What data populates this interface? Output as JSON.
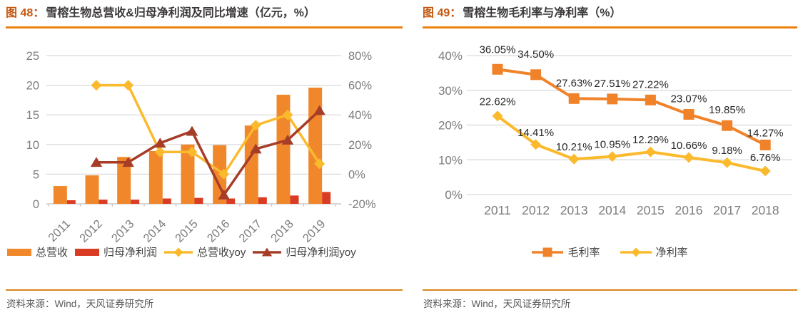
{
  "panels": [
    {
      "fig_label": "图 48：",
      "title": "雪榕生物总营收&归母净利润及同比增速（亿元，%）",
      "source": "资料来源：Wind，天风证券研究所"
    },
    {
      "fig_label": "图 49：",
      "title": "雪榕生物毛利率与净利率（%）",
      "source": "资料来源：Wind，天风证券研究所"
    }
  ],
  "colors": {
    "fig_label": "#C4570E",
    "title_text": "#3B3838",
    "rule_orange": "#EC820D",
    "axis_label_gray": "#7D7D7D",
    "grid_gray": "#D9D9D9",
    "baseline_gray": "#BFBFBF",
    "data_label": "#262626",
    "source_gray": "#595959",
    "bar_orange": "#F0882B",
    "bar_red": "#DA3B23",
    "line_yellow": "#FBBA2D",
    "line_dark_red": "#A63D28",
    "line_orange": "#F0832A"
  },
  "chart_data": [
    {
      "type": "bar",
      "subtype": "combo-bar-line-dual-axis",
      "title": "雪榕生物总营收&归母净利润及同比增速（亿元，%）",
      "categories": [
        "2011",
        "2012",
        "2013",
        "2014",
        "2015",
        "2016",
        "2017",
        "2018",
        "2019"
      ],
      "series": [
        {
          "name": "总营收",
          "kind": "bar",
          "axis": "left",
          "color": "#F0882B",
          "values": [
            3.0,
            4.8,
            7.9,
            8.9,
            10.0,
            9.9,
            13.2,
            18.4,
            19.6
          ]
        },
        {
          "name": "归母净利润",
          "kind": "bar",
          "axis": "left",
          "color": "#DA3B23",
          "values": [
            0.6,
            0.7,
            0.7,
            0.9,
            1.0,
            0.9,
            1.1,
            1.4,
            2.0
          ]
        },
        {
          "name": "总营收yoy",
          "kind": "line",
          "marker": "diamond",
          "axis": "right",
          "color": "#FBBA2D",
          "values": [
            null,
            60,
            60,
            15,
            15,
            0,
            33,
            40,
            7
          ]
        },
        {
          "name": "归母净利润yoy",
          "kind": "line",
          "marker": "triangle",
          "axis": "right",
          "color": "#A63D28",
          "values": [
            null,
            8,
            8,
            21,
            29,
            -14,
            17,
            23,
            43
          ]
        }
      ],
      "left_axis": {
        "min": 0,
        "max": 25,
        "tick_values": [
          0,
          5,
          10,
          15,
          20,
          25
        ],
        "tick_labels": [
          "0",
          "5",
          "10",
          "15",
          "20",
          "25"
        ]
      },
      "right_axis": {
        "min": -20,
        "max": 80,
        "tick_values": [
          -20,
          0,
          20,
          40,
          60,
          80
        ],
        "tick_labels": [
          "-20%",
          "0%",
          "20%",
          "40%",
          "60%",
          "80%"
        ]
      },
      "grid": true,
      "legend_position": "bottom"
    },
    {
      "type": "line",
      "title": "雪榕生物毛利率与净利率（%）",
      "categories": [
        "2011",
        "2012",
        "2013",
        "2014",
        "2015",
        "2016",
        "2017",
        "2018"
      ],
      "series": [
        {
          "name": "毛利率",
          "kind": "line",
          "marker": "square",
          "color": "#F0832A",
          "values": [
            36.05,
            34.5,
            27.63,
            27.51,
            27.22,
            23.07,
            19.85,
            14.27
          ],
          "labels": [
            "36.05%",
            "34.50%",
            "27.63%",
            "27.51%",
            "27.22%",
            "23.07%",
            "19.85%",
            "14.27%"
          ]
        },
        {
          "name": "净利率",
          "kind": "line",
          "marker": "diamond",
          "color": "#FBBA2D",
          "values": [
            22.62,
            14.41,
            10.21,
            10.95,
            12.29,
            10.66,
            9.18,
            6.76
          ],
          "labels": [
            "22.62%",
            "14.41%",
            "10.21%",
            "10.95%",
            "12.29%",
            "10.66%",
            "9.18%",
            "6.76%"
          ]
        }
      ],
      "y_axis": {
        "min": 0,
        "max": 40,
        "tick_values": [
          0,
          10,
          20,
          30,
          40
        ],
        "tick_labels": [
          "0%",
          "10%",
          "20%",
          "30%",
          "40%"
        ]
      },
      "grid": true,
      "legend_position": "bottom"
    }
  ]
}
